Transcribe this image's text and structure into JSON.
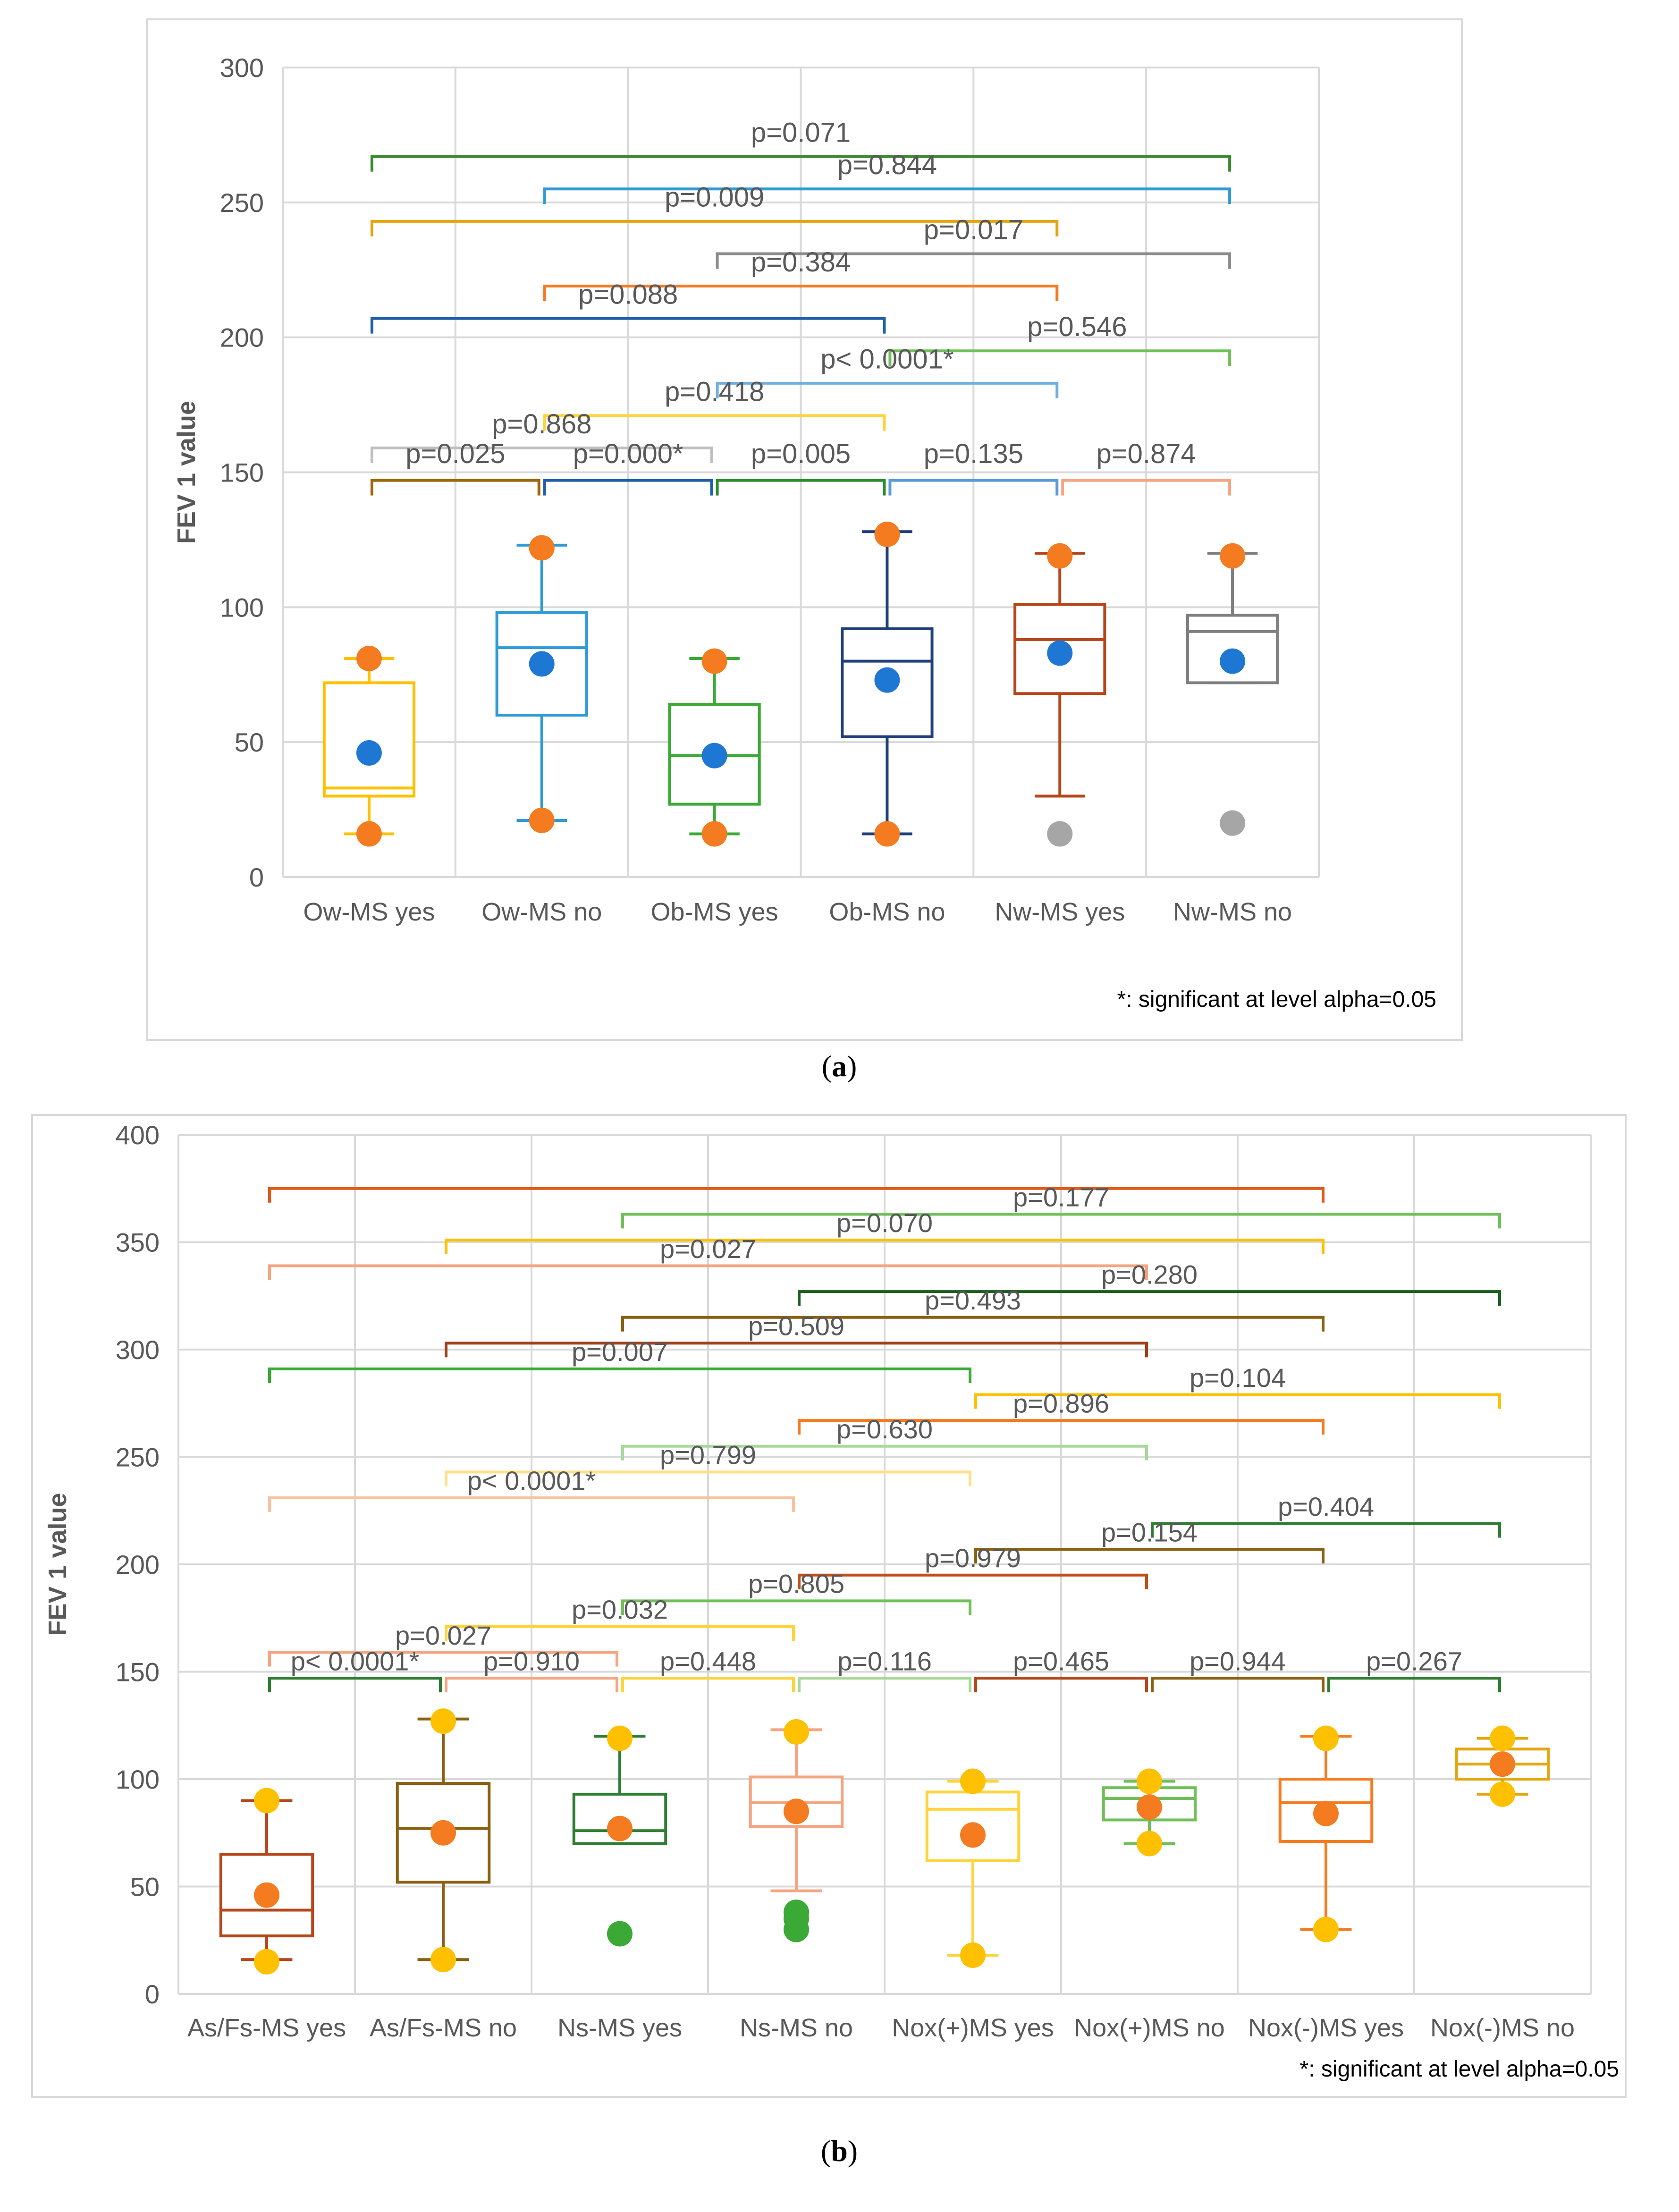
{
  "captions": {
    "a_open": "(",
    "a_letter": "a",
    "a_close": ")",
    "b_open": "(",
    "b_letter": "b",
    "b_close": ")"
  },
  "chart_data": [
    {
      "type": "box",
      "ylabel": "FEV 1 value",
      "ylim": [
        0,
        300
      ],
      "yticks": [
        0,
        50,
        100,
        150,
        200,
        250,
        300
      ],
      "grid": true,
      "footnote": "*: significant at level alpha=0.05",
      "categories": [
        "Ow-MS yes",
        "Ow-MS no",
        "Ob-MS yes",
        "Ob-MS no",
        "Nw-MS yes",
        "Nw-MS no"
      ],
      "boxes": [
        {
          "q1": 30,
          "median": 33,
          "q3": 72,
          "whisker_low": 16,
          "whisker_high": 81,
          "mean": 46,
          "min_marker": 16,
          "max_marker": 81,
          "outliers": [],
          "color": "#ffc000",
          "mean_color": "#1f77d4",
          "marker_color": "#f47b20"
        },
        {
          "q1": 60,
          "median": 85,
          "q3": 98,
          "whisker_low": 21,
          "whisker_high": 123,
          "mean": 79,
          "min_marker": 21,
          "max_marker": 122,
          "outliers": [],
          "color": "#2e9ad6",
          "mean_color": "#1f77d4",
          "marker_color": "#f47b20"
        },
        {
          "q1": 27,
          "median": 45,
          "q3": 64,
          "whisker_low": 16,
          "whisker_high": 81,
          "mean": 45,
          "min_marker": 16,
          "max_marker": 80,
          "outliers": [],
          "color": "#3aa935",
          "mean_color": "#1f77d4",
          "marker_color": "#f47b20"
        },
        {
          "q1": 52,
          "median": 80,
          "q3": 92,
          "whisker_low": 16,
          "whisker_high": 128,
          "mean": 73,
          "min_marker": 16,
          "max_marker": 127,
          "outliers": [],
          "color": "#1f3f7a",
          "mean_color": "#1f77d4",
          "marker_color": "#f47b20"
        },
        {
          "q1": 68,
          "median": 88,
          "q3": 101,
          "whisker_low": 30,
          "whisker_high": 120,
          "mean": 83,
          "min_marker": null,
          "max_marker": 119,
          "outliers": [
            16
          ],
          "color": "#b5471a",
          "mean_color": "#1f77d4",
          "marker_color": "#f47b20"
        },
        {
          "q1": 72,
          "median": 91,
          "q3": 97,
          "whisker_low": 72,
          "whisker_high": 120,
          "mean": 80,
          "min_marker": null,
          "max_marker": 119,
          "outliers": [
            20
          ],
          "color": "#7f7f7f",
          "mean_color": "#1f77d4",
          "marker_color": "#f47b20"
        }
      ],
      "comparisons": [
        {
          "from": 0,
          "to": 1,
          "y": 147,
          "label": "p=0.025",
          "color": "#a0660a",
          "label_pos": 0.5,
          "label_y": 157
        },
        {
          "from": 1,
          "to": 2,
          "y": 147,
          "label": "p=0.000*",
          "color": "#1f5fa8",
          "label_pos": 0.5,
          "label_y": 157
        },
        {
          "from": 2,
          "to": 3,
          "y": 147,
          "label": "p=0.005",
          "color": "#2e8b2e",
          "label_pos": 0.5,
          "label_y": 157
        },
        {
          "from": 3,
          "to": 4,
          "y": 147,
          "label": "p=0.135",
          "color": "#5b9bd5",
          "label_pos": 0.5,
          "label_y": 157
        },
        {
          "from": 4,
          "to": 5,
          "y": 147,
          "label": "p=0.874",
          "color": "#f4a582",
          "label_pos": 0.5,
          "label_y": 157
        },
        {
          "from": 0,
          "to": 2,
          "y": 159,
          "label": "p=0.868",
          "color": "#bfbfbf",
          "label_pos": 0.5,
          "label_y": 168
        },
        {
          "from": 1,
          "to": 3,
          "y": 171,
          "label": "p=0.418",
          "color": "#ffd43b",
          "label_pos": 0.5,
          "label_y": 180
        },
        {
          "from": 2,
          "to": 4,
          "y": 183,
          "label": "p< 0.0001*",
          "color": "#6fb0e0",
          "label_pos": 0.5,
          "label_y": 192
        },
        {
          "from": 3,
          "to": 5,
          "y": 195,
          "label": "p=0.546",
          "color": "#70c05a",
          "label_pos": 0.55,
          "label_y": 204
        },
        {
          "from": 0,
          "to": 3,
          "y": 207,
          "label": "p=0.088",
          "color": "#1f5fa8",
          "label_pos": 0.5,
          "label_y": 216
        },
        {
          "from": 1,
          "to": 4,
          "y": 219,
          "label": "p=0.384",
          "color": "#f47b20",
          "label_pos": 0.5,
          "label_y": 228
        },
        {
          "from": 2,
          "to": 5,
          "y": 231,
          "label": "p=0.017",
          "color": "#8c8c8c",
          "label_pos": 0.5,
          "label_y": 240
        },
        {
          "from": 0,
          "to": 4,
          "y": 243,
          "label": "p=0.009",
          "color": "#e3a60f",
          "label_pos": 0.5,
          "label_y": 252
        },
        {
          "from": 1,
          "to": 5,
          "y": 255,
          "label": "p=0.844",
          "color": "#2e9ad6",
          "label_pos": 0.5,
          "label_y": 264
        },
        {
          "from": 0,
          "to": 5,
          "y": 267,
          "label": "p=0.071",
          "color": "#3a8a2e",
          "label_pos": 0.5,
          "label_y": 276
        }
      ]
    },
    {
      "type": "box",
      "ylabel": "FEV 1 value",
      "ylim": [
        0,
        400
      ],
      "yticks": [
        0,
        50,
        100,
        150,
        200,
        250,
        300,
        350,
        400
      ],
      "grid": true,
      "footnote": "*: significant at level alpha=0.05",
      "categories": [
        "As/Fs-MS yes",
        "As/Fs-MS no",
        "Ns-MS yes",
        "Ns-MS no",
        "Nox(+)MS yes",
        "Nox(+)MS no",
        "Nox(-)MS yes",
        "Nox(-)MS no"
      ],
      "boxes": [
        {
          "q1": 27,
          "median": 39,
          "q3": 65,
          "whisker_low": 16,
          "whisker_high": 90,
          "mean": 46,
          "min_marker": 15,
          "max_marker": 90,
          "outliers": [],
          "color": "#b5471a",
          "mean_color": "#f47b20",
          "marker_color": "#ffc000"
        },
        {
          "q1": 52,
          "median": 77,
          "q3": 98,
          "whisker_low": 16,
          "whisker_high": 128,
          "mean": 75,
          "min_marker": 16,
          "max_marker": 127,
          "outliers": [],
          "color": "#8a6012",
          "mean_color": "#f47b20",
          "marker_color": "#ffc000"
        },
        {
          "q1": 70,
          "median": 76,
          "q3": 93,
          "whisker_low": 70,
          "whisker_high": 120,
          "mean": 77,
          "min_marker": null,
          "max_marker": 119,
          "outliers": [
            28
          ],
          "color": "#2e7d32",
          "mean_color": "#f47b20",
          "marker_color": "#ffc000"
        },
        {
          "q1": 78,
          "median": 89,
          "q3": 101,
          "whisker_low": 48,
          "whisker_high": 123,
          "mean": 85,
          "min_marker": null,
          "max_marker": 122,
          "outliers": [
            30,
            35,
            38
          ],
          "color": "#f4a582",
          "mean_color": "#f47b20",
          "marker_color": "#ffc000"
        },
        {
          "q1": 62,
          "median": 86,
          "q3": 94,
          "whisker_low": 18,
          "whisker_high": 99,
          "mean": 74,
          "min_marker": 18,
          "max_marker": 99,
          "outliers": [],
          "color": "#ffd43b",
          "mean_color": "#f47b20",
          "marker_color": "#ffc000"
        },
        {
          "q1": 81,
          "median": 91,
          "q3": 96,
          "whisker_low": 70,
          "whisker_high": 99,
          "mean": 87,
          "min_marker": 70,
          "max_marker": 99,
          "outliers": [],
          "color": "#70c05a",
          "mean_color": "#f47b20",
          "marker_color": "#ffc000"
        },
        {
          "q1": 71,
          "median": 89,
          "q3": 100,
          "whisker_low": 30,
          "whisker_high": 120,
          "mean": 84,
          "min_marker": 30,
          "max_marker": 119,
          "outliers": [],
          "color": "#f47b20",
          "mean_color": "#f47b20",
          "marker_color": "#ffc000"
        },
        {
          "q1": 100,
          "median": 107,
          "q3": 114,
          "whisker_low": 93,
          "whisker_high": 119,
          "mean": 107,
          "min_marker": 93,
          "max_marker": 119,
          "outliers": [],
          "color": "#e3a60f",
          "mean_color": "#f47b20",
          "marker_color": "#ffc000"
        }
      ],
      "comparisons": [
        {
          "from": 0,
          "to": 1,
          "y": 147,
          "label": "p< 0.0001*",
          "color": "#2e7d32",
          "label_pos": 0.5,
          "label_y": 155
        },
        {
          "from": 1,
          "to": 2,
          "y": 147,
          "label": "p=0.910",
          "color": "#f4a582",
          "label_pos": 0.5,
          "label_y": 155
        },
        {
          "from": 2,
          "to": 3,
          "y": 147,
          "label": "p=0.448",
          "color": "#ffd43b",
          "label_pos": 0.5,
          "label_y": 155
        },
        {
          "from": 3,
          "to": 4,
          "y": 147,
          "label": "p=0.116",
          "color": "#a8d89a",
          "label_pos": 0.5,
          "label_y": 155
        },
        {
          "from": 4,
          "to": 5,
          "y": 147,
          "label": "p=0.465",
          "color": "#b5471a",
          "label_pos": 0.5,
          "label_y": 155
        },
        {
          "from": 5,
          "to": 6,
          "y": 147,
          "label": "p=0.944",
          "color": "#8a6012",
          "label_pos": 0.5,
          "label_y": 155
        },
        {
          "from": 6,
          "to": 7,
          "y": 147,
          "label": "p=0.267",
          "color": "#2e7d32",
          "label_pos": 0.5,
          "label_y": 155
        },
        {
          "from": 0,
          "to": 2,
          "y": 159,
          "label": "p=0.027",
          "color": "#f4a582",
          "label_pos": 0.5,
          "label_y": 167
        },
        {
          "from": 1,
          "to": 3,
          "y": 171,
          "label": "p=0.032",
          "color": "#ffd43b",
          "label_pos": 0.5,
          "label_y": 179
        },
        {
          "from": 2,
          "to": 4,
          "y": 183,
          "label": "p=0.805",
          "color": "#70c05a",
          "label_pos": 0.5,
          "label_y": 191
        },
        {
          "from": 3,
          "to": 5,
          "y": 195,
          "label": "p=0.979",
          "color": "#c0501a",
          "label_pos": 0.5,
          "label_y": 203
        },
        {
          "from": 4,
          "to": 6,
          "y": 207,
          "label": "p=0.154",
          "color": "#8a6012",
          "label_pos": 0.5,
          "label_y": 215
        },
        {
          "from": 5,
          "to": 7,
          "y": 219,
          "label": "p=0.404",
          "color": "#2e7d32",
          "label_pos": 0.5,
          "label_y": 227
        },
        {
          "from": 0,
          "to": 3,
          "y": 231,
          "label": "p< 0.0001*",
          "color": "#f9c3a0",
          "label_pos": 0.5,
          "label_y": 239
        },
        {
          "from": 1,
          "to": 4,
          "y": 243,
          "label": "p=0.799",
          "color": "#ffe08a",
          "label_pos": 0.5,
          "label_y": 251
        },
        {
          "from": 2,
          "to": 5,
          "y": 255,
          "label": "p=0.630",
          "color": "#a8d89a",
          "label_pos": 0.5,
          "label_y": 263
        },
        {
          "from": 3,
          "to": 6,
          "y": 267,
          "label": "p=0.896",
          "color": "#f47b20",
          "label_pos": 0.5,
          "label_y": 275
        },
        {
          "from": 4,
          "to": 7,
          "y": 279,
          "label": "p=0.104",
          "color": "#ffc000",
          "label_pos": 0.5,
          "label_y": 287
        },
        {
          "from": 0,
          "to": 4,
          "y": 291,
          "label": "p=0.007",
          "color": "#3aa935",
          "label_pos": 0.5,
          "label_y": 299
        },
        {
          "from": 1,
          "to": 5,
          "y": 303,
          "label": "p=0.509",
          "color": "#a0401a",
          "label_pos": 0.5,
          "label_y": 311
        },
        {
          "from": 2,
          "to": 6,
          "y": 315,
          "label": "p=0.493",
          "color": "#8a6012",
          "label_pos": 0.5,
          "label_y": 323
        },
        {
          "from": 3,
          "to": 7,
          "y": 327,
          "label": "p=0.280",
          "color": "#1e5e1e",
          "label_pos": 0.5,
          "label_y": 335
        },
        {
          "from": 0,
          "to": 5,
          "y": 339,
          "label": "p=0.027",
          "color": "#f4a582",
          "label_pos": 0.5,
          "label_y": 347
        },
        {
          "from": 1,
          "to": 6,
          "y": 351,
          "label": "p=0.070",
          "color": "#ffc000",
          "label_pos": 0.5,
          "label_y": 359
        },
        {
          "from": 2,
          "to": 7,
          "y": 363,
          "label": "p=0.177",
          "color": "#70c05a",
          "label_pos": 0.5,
          "label_y": 371
        },
        {
          "from": 0,
          "to": 6,
          "y": 375,
          "label": "",
          "color": "#e05a1a",
          "label_pos": 0.5,
          "label_y": 383
        }
      ]
    }
  ]
}
